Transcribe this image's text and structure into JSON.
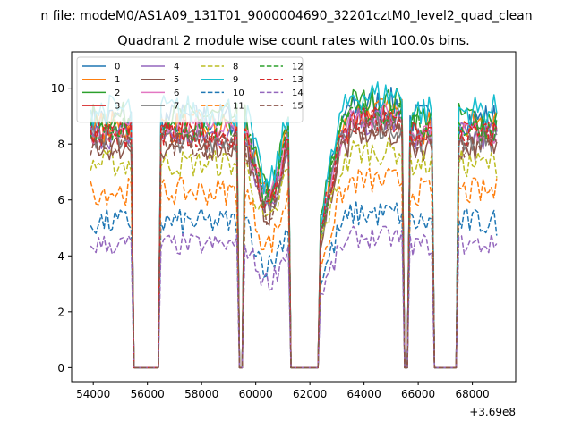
{
  "chart_data": {
    "type": "line",
    "suptitle": "n file: modeM0/AS1A09_131T01_9000004690_32201cztM0_level2_quad_clean",
    "title": "Quadrant 2 module wise count rates with 100.0s bins.",
    "xlabel": "",
    "ylabel": "",
    "x_offset_label": "+3.69e8",
    "x_range": [
      53900,
      68900
    ],
    "xlim": [
      53200,
      69600
    ],
    "ylim": [
      -0.5,
      11.3
    ],
    "xticks": [
      54000,
      56000,
      58000,
      60000,
      62000,
      64000,
      66000,
      68000
    ],
    "xtick_labels": [
      "54000",
      "56000",
      "58000",
      "60000",
      "62000",
      "64000",
      "66000",
      "68000"
    ],
    "yticks": [
      0,
      2,
      4,
      6,
      8,
      10
    ],
    "ytick_labels": [
      "0",
      "2",
      "4",
      "6",
      "8",
      "10"
    ],
    "bin_seconds": 100.0,
    "gaps": [
      [
        55500,
        56400
      ],
      [
        59400,
        59500
      ],
      [
        61300,
        62300
      ],
      [
        65500,
        65600
      ],
      [
        66600,
        67400
      ]
    ],
    "legend_location": "upper-left",
    "series": [
      {
        "name": "0",
        "color": "#1f77b4",
        "dash": "solid",
        "level": 8.9,
        "noise": 0.6
      },
      {
        "name": "1",
        "color": "#ff7f0e",
        "dash": "solid",
        "level": 8.6,
        "noise": 0.6
      },
      {
        "name": "2",
        "color": "#2ca02c",
        "dash": "solid",
        "level": 9.0,
        "noise": 0.5
      },
      {
        "name": "3",
        "color": "#d62728",
        "dash": "solid",
        "level": 8.4,
        "noise": 0.5
      },
      {
        "name": "4",
        "color": "#9467bd",
        "dash": "solid",
        "level": 8.3,
        "noise": 0.5
      },
      {
        "name": "5",
        "color": "#8c564b",
        "dash": "solid",
        "level": 7.9,
        "noise": 0.5
      },
      {
        "name": "6",
        "color": "#e377c2",
        "dash": "solid",
        "level": 8.5,
        "noise": 0.5
      },
      {
        "name": "7",
        "color": "#7f7f7f",
        "dash": "solid",
        "level": 8.2,
        "noise": 0.5
      },
      {
        "name": "8",
        "color": "#bcbd22",
        "dash": "dashed",
        "level": 7.3,
        "noise": 0.5
      },
      {
        "name": "9",
        "color": "#17becf",
        "dash": "solid",
        "level": 9.2,
        "noise": 0.6
      },
      {
        "name": "10",
        "color": "#1f77b4",
        "dash": "dashed",
        "level": 5.2,
        "noise": 0.5
      },
      {
        "name": "11",
        "color": "#ff7f0e",
        "dash": "dashed",
        "level": 6.3,
        "noise": 0.5
      },
      {
        "name": "12",
        "color": "#2ca02c",
        "dash": "dashed",
        "level": 8.6,
        "noise": 0.5
      },
      {
        "name": "13",
        "color": "#d62728",
        "dash": "dashed",
        "level": 8.3,
        "noise": 0.5
      },
      {
        "name": "14",
        "color": "#9467bd",
        "dash": "dashed",
        "level": 4.4,
        "noise": 0.4
      },
      {
        "name": "15",
        "color": "#8c564b",
        "dash": "dashed",
        "level": 8.0,
        "noise": 0.5
      }
    ]
  }
}
